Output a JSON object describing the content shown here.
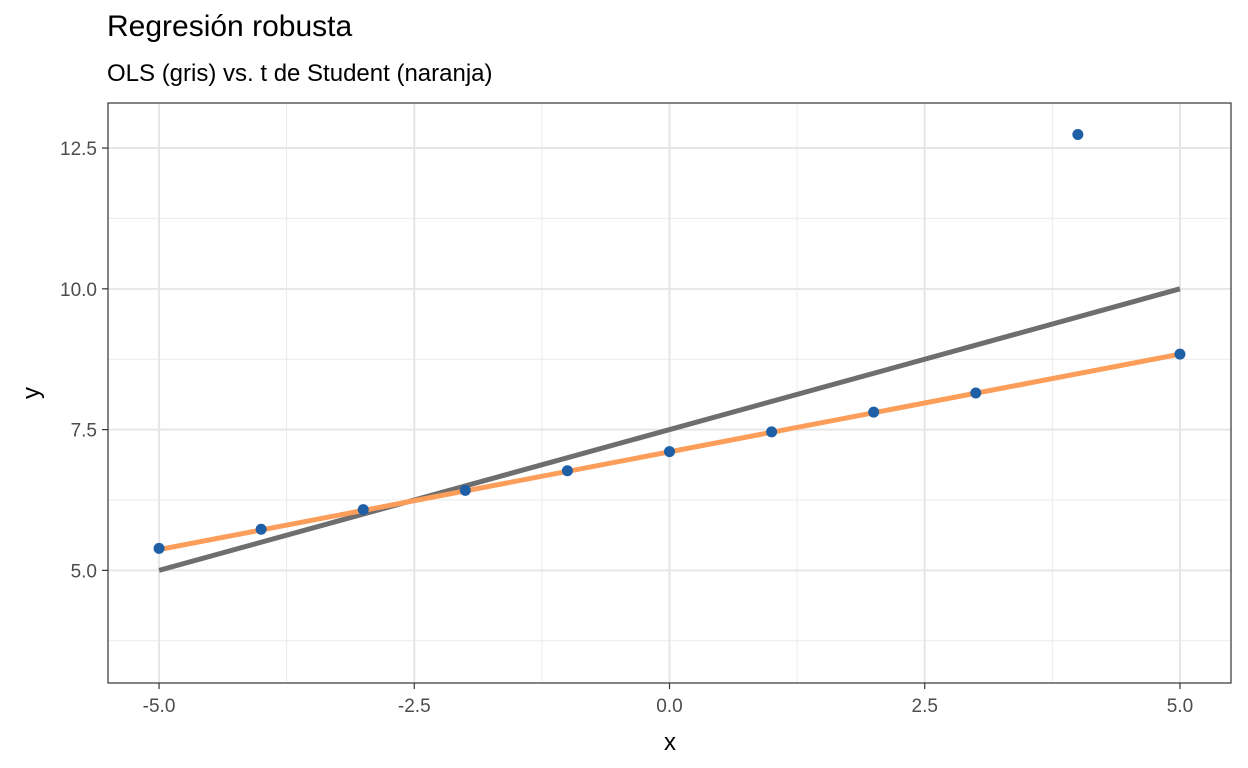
{
  "chart_data": {
    "type": "scatter",
    "title": "Regresión robusta",
    "subtitle": "OLS (gris) vs. t de Student (naranja)",
    "xlabel": "x",
    "ylabel": "y",
    "xlim": [
      -5.5,
      5.5
    ],
    "ylim": [
      3.0,
      13.3
    ],
    "x_ticks": [
      -5.0,
      -2.5,
      0.0,
      2.5,
      5.0
    ],
    "x_tick_labels": [
      "-5.0",
      "-2.5",
      "0.0",
      "2.5",
      "5.0"
    ],
    "y_ticks": [
      5.0,
      7.5,
      10.0,
      12.5
    ],
    "y_tick_labels": [
      "5.0",
      "7.5",
      "10.0",
      "12.5"
    ],
    "grid": true,
    "points": {
      "color": "#1f5fa6",
      "x": [
        -5,
        -4,
        -3,
        -2,
        -1,
        0,
        1,
        2,
        3,
        4,
        5
      ],
      "y": [
        5.39,
        5.73,
        6.08,
        6.42,
        6.77,
        7.11,
        7.46,
        7.81,
        8.15,
        12.74,
        8.84
      ]
    },
    "lines": [
      {
        "color": "#6e6e6e",
        "x": [
          -5,
          5
        ],
        "y": [
          5.0,
          10.0
        ]
      },
      {
        "color": "#fc9d5a",
        "x": [
          -5,
          5
        ],
        "y": [
          5.37,
          8.84
        ]
      }
    ]
  }
}
